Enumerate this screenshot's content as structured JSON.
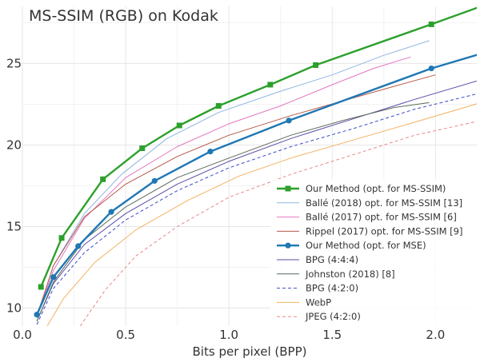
{
  "chart_data": {
    "type": "line",
    "title": "MS-SSIM (RGB) on Kodak",
    "xlabel": "Bits per pixel (BPP)",
    "ylabel": "",
    "xlim": [
      0.0,
      2.2
    ],
    "ylim": [
      8.9,
      28.5
    ],
    "xticks": [
      0.0,
      0.5,
      1.0,
      1.5,
      2.0
    ],
    "xtick_labels": [
      "0.0",
      "0.5",
      "1.0",
      "1.5",
      "2.0"
    ],
    "yticks": [
      10,
      15,
      20,
      25
    ],
    "ytick_labels": [
      "10",
      "15",
      "20",
      "25"
    ],
    "grid": true,
    "legend_position": "lower-right",
    "series": [
      {
        "name": "Our Method (opt. for MS-SSIM)",
        "color": "#2ca02c",
        "style": "solid",
        "width": 2.4,
        "marker": "square",
        "x": [
          0.09,
          0.19,
          0.39,
          0.58,
          0.76,
          0.95,
          1.2,
          1.42,
          1.98,
          2.22
        ],
        "y": [
          11.3,
          14.3,
          17.9,
          19.8,
          21.2,
          22.4,
          23.7,
          24.9,
          27.4,
          28.5
        ],
        "markers": [
          true,
          true,
          true,
          true,
          true,
          true,
          true,
          true,
          true,
          false
        ]
      },
      {
        "name": "Ballé (2018) opt. for MS-SSIM [13]",
        "color": "#8fb6e0",
        "style": "solid",
        "width": 1.0,
        "marker": "none",
        "x": [
          0.08,
          0.15,
          0.3,
          0.48,
          0.7,
          0.95,
          1.25,
          1.5,
          1.75,
          1.97
        ],
        "y": [
          9.8,
          12.6,
          15.8,
          18.2,
          20.4,
          22.0,
          23.3,
          24.3,
          25.5,
          26.4
        ]
      },
      {
        "name": "Ballé (2017) opt. for MS-SSIM [6]",
        "color": "#e377c2",
        "style": "solid",
        "width": 1.0,
        "marker": "none",
        "x": [
          0.08,
          0.15,
          0.3,
          0.5,
          0.75,
          1.0,
          1.25,
          1.5,
          1.7,
          1.88
        ],
        "y": [
          9.8,
          12.3,
          15.5,
          18.0,
          19.9,
          21.3,
          22.4,
          23.7,
          24.7,
          25.4
        ]
      },
      {
        "name": "Rippel (2017) opt. for MS-SSIM [9]",
        "color": "#b55a4a",
        "style": "solid",
        "width": 1.0,
        "marker": "none",
        "x": [
          0.08,
          0.15,
          0.3,
          0.5,
          0.75,
          1.0,
          1.3,
          1.55,
          1.8,
          2.0
        ],
        "y": [
          9.9,
          12.6,
          15.6,
          17.6,
          19.3,
          20.6,
          21.8,
          22.7,
          23.6,
          24.3
        ]
      },
      {
        "name": "Our Method (opt. for MSE)",
        "color": "#1f77b4",
        "style": "solid",
        "width": 2.4,
        "marker": "circle",
        "x": [
          0.07,
          0.15,
          0.27,
          0.43,
          0.64,
          0.91,
          1.29,
          1.98,
          2.22
        ],
        "y": [
          9.6,
          11.9,
          13.8,
          15.9,
          17.8,
          19.6,
          21.5,
          24.7,
          25.6
        ],
        "markers": [
          true,
          true,
          true,
          true,
          true,
          true,
          true,
          true,
          false
        ]
      },
      {
        "name": "BPG (4:4:4)",
        "color": "#5b4ba8",
        "style": "solid",
        "width": 1.0,
        "marker": "none",
        "x": [
          0.07,
          0.15,
          0.3,
          0.5,
          0.75,
          1.0,
          1.3,
          1.6,
          1.9,
          2.22
        ],
        "y": [
          9.2,
          11.5,
          13.9,
          15.8,
          17.6,
          19.0,
          20.4,
          21.6,
          22.8,
          24.0
        ]
      },
      {
        "name": "Johnston (2018) [8]",
        "color": "#5a6b5a",
        "style": "solid",
        "width": 1.0,
        "marker": "none",
        "x": [
          0.07,
          0.15,
          0.3,
          0.5,
          0.75,
          1.0,
          1.3,
          1.55,
          1.8,
          1.97
        ],
        "y": [
          9.2,
          11.6,
          14.2,
          16.2,
          18.0,
          19.2,
          20.6,
          21.5,
          22.3,
          22.6
        ]
      },
      {
        "name": "BPG (4:2:0)",
        "color": "#3b4bc8",
        "style": "dashed",
        "width": 1.0,
        "marker": "none",
        "x": [
          0.07,
          0.15,
          0.3,
          0.5,
          0.75,
          1.0,
          1.3,
          1.6,
          1.9,
          2.22
        ],
        "y": [
          9.0,
          11.2,
          13.4,
          15.4,
          17.2,
          18.6,
          19.9,
          21.0,
          22.2,
          23.2
        ]
      },
      {
        "name": "WebP",
        "color": "#f2b260",
        "style": "solid",
        "width": 1.0,
        "marker": "none",
        "x": [
          0.12,
          0.2,
          0.35,
          0.55,
          0.8,
          1.05,
          1.3,
          1.6,
          1.9,
          2.22
        ],
        "y": [
          8.9,
          10.6,
          12.8,
          14.8,
          16.6,
          18.1,
          19.2,
          20.3,
          21.4,
          22.6
        ]
      },
      {
        "name": "JPEG (4:2:0)",
        "color": "#e88a8a",
        "style": "dashed",
        "width": 1.0,
        "marker": "none",
        "x": [
          0.28,
          0.4,
          0.55,
          0.75,
          1.0,
          1.3,
          1.6,
          1.9,
          2.22
        ],
        "y": [
          8.9,
          11.1,
          13.2,
          15.0,
          16.8,
          18.2,
          19.4,
          20.6,
          21.5
        ]
      }
    ]
  }
}
